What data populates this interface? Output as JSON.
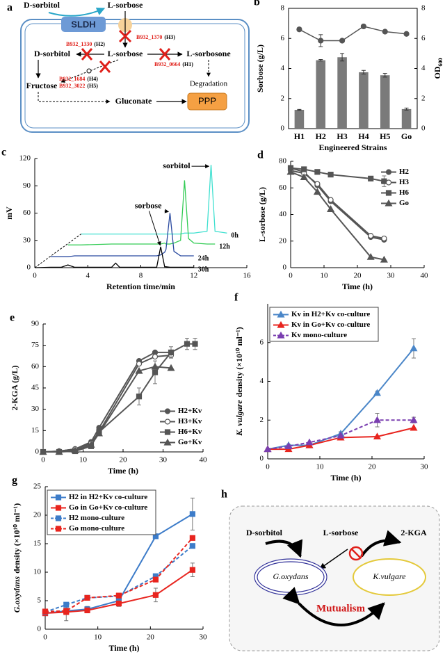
{
  "panel_a": {
    "letter": "a",
    "outside": [
      "D-sorbitol",
      "L-sorbose"
    ],
    "enzyme": "SLDH",
    "inside": [
      "D-sorbitol",
      "L-sorbose",
      "L-sorbosone",
      "Fructose",
      "Gluconate",
      "PPP",
      "Degradation"
    ],
    "genes": [
      {
        "gene": "B932_1370",
        "strain": "(H3)"
      },
      {
        "gene": "B932_1330",
        "strain": "(H2)"
      },
      {
        "gene": "B932_0664",
        "strain": "(H1)"
      },
      {
        "gene": "B932_1684",
        "strain": "(H4)"
      },
      {
        "gene": "B932_3022",
        "strain": "(H5)"
      }
    ]
  },
  "chart_data": [
    {
      "panel": "b",
      "type": "bar",
      "categories": [
        "H1",
        "H2",
        "H3",
        "H4",
        "H5",
        "Go"
      ],
      "xlabel": "Engineered Strains",
      "ylabel": "Sorbose (g/L)",
      "y2label": "OD",
      "y2label_sub": "600",
      "ylim": [
        0,
        8
      ],
      "yticks": [
        0,
        2,
        4,
        6,
        8
      ],
      "y2lim": [
        0,
        8
      ],
      "y2ticks": [
        0,
        2,
        4,
        6,
        8
      ],
      "series": [
        {
          "color": "#7a7a7a",
          "values": [
            1.25,
            4.55,
            4.75,
            3.75,
            3.55,
            1.3
          ],
          "errors": [
            0.03,
            0.05,
            0.25,
            0.12,
            0.12,
            0.07
          ]
        },
        {
          "axis": "y2",
          "color": "#555555",
          "marker": "circle",
          "filled": true,
          "values": [
            6.6,
            5.85,
            5.85,
            6.8,
            6.45,
            6.3
          ],
          "errors": [
            0.12,
            0.4,
            0.1,
            0.1,
            0.05,
            0.1
          ]
        }
      ]
    },
    {
      "panel": "c",
      "type": "line",
      "xlabel": "Retention time/min",
      "ylabel": "mV",
      "xlim": [
        0,
        16
      ],
      "xticks": [
        0,
        4,
        8,
        12,
        16
      ],
      "ylim": [
        0,
        120
      ],
      "yticks": [
        0,
        30,
        60,
        90,
        120
      ],
      "annotations": [
        "sorbitol",
        "sorbose"
      ],
      "annotation_color": "#6a2fa0",
      "x": [
        0,
        1.2,
        2,
        2.5,
        3,
        3.5,
        5.8,
        6.1,
        6.4,
        9.2,
        9.5,
        9.8,
        9.9,
        10.2,
        10.5,
        11.0,
        11.3,
        11.6,
        12,
        13.0,
        13.3,
        13.6,
        14.5
      ],
      "series": [
        {
          "name": "0h",
          "color": "#3fe0d0",
          "values": [
            null,
            null,
            null,
            null,
            null,
            37,
            37,
            37,
            37,
            37,
            37,
            37,
            37,
            37,
            37,
            37,
            38,
            38,
            38,
            40,
            113,
            40,
            38
          ]
        },
        {
          "name": "12h",
          "color": "#33cc55",
          "values": [
            null,
            null,
            null,
            25,
            25,
            25,
            26,
            26,
            26,
            26,
            26,
            27,
            26,
            26,
            27,
            30,
            96,
            32,
            27,
            26,
            26,
            26,
            null
          ]
        },
        {
          "name": "24h",
          "color": "#2a4aa0",
          "values": [
            null,
            12,
            12,
            12,
            13,
            13,
            13,
            13,
            13,
            13,
            14,
            17,
            20,
            60,
            18,
            13,
            13,
            13,
            13,
            null,
            null,
            null,
            null
          ]
        },
        {
          "name": "30h",
          "color": "#000000",
          "values": [
            0,
            0.5,
            0.5,
            3,
            0.5,
            0.5,
            0.5,
            5,
            0.5,
            0.5,
            23,
            1,
            1,
            0.5,
            0.5,
            0.5,
            0.5,
            0.5,
            0.5,
            null,
            null,
            null,
            null
          ]
        }
      ]
    },
    {
      "panel": "d",
      "type": "line",
      "xlabel": "Time (h)",
      "ylabel": "L-sorbose (g/L)",
      "xlim": [
        0,
        40
      ],
      "xticks": [
        0,
        10,
        20,
        30,
        40
      ],
      "ylim": [
        0,
        80
      ],
      "yticks": [
        0,
        20,
        40,
        60,
        80
      ],
      "legend": "upper right",
      "x": [
        0,
        4,
        8,
        12,
        24,
        28
      ],
      "series": [
        {
          "name": "H2",
          "color": "#555555",
          "marker": "circle",
          "filled": true,
          "values": [
            75,
            72,
            62,
            50,
            23,
            21
          ]
        },
        {
          "name": "H3",
          "color": "#555555",
          "marker": "circle",
          "filled": false,
          "values": [
            73,
            71,
            63,
            51,
            24,
            22
          ]
        },
        {
          "name": "H6",
          "color": "#555555",
          "marker": "square",
          "filled": true,
          "values": [
            75,
            74,
            72,
            70,
            67,
            65
          ],
          "errors": [
            1,
            1,
            1,
            1,
            1,
            4
          ]
        },
        {
          "name": "Go",
          "color": "#555555",
          "marker": "triangle",
          "filled": true,
          "values": [
            72,
            68,
            57,
            44,
            8,
            6
          ]
        }
      ]
    },
    {
      "panel": "e",
      "type": "line",
      "xlabel": "Time (h)",
      "ylabel": "2-KGA (g/L)",
      "xlim": [
        0,
        40
      ],
      "xticks": [
        0,
        10,
        20,
        30,
        40
      ],
      "ylim": [
        0,
        90
      ],
      "yticks": [
        0,
        15,
        30,
        45,
        60,
        75,
        90
      ],
      "legend": "lower right",
      "x": [
        0,
        4,
        8,
        12,
        14,
        24,
        28,
        32,
        36,
        38
      ],
      "series": [
        {
          "name": "H2+Kv",
          "color": "#555555",
          "marker": "circle",
          "filled": true,
          "values": [
            0,
            0.5,
            2,
            7,
            17,
            64,
            70,
            70,
            null,
            null
          ]
        },
        {
          "name": "H3+Kv",
          "color": "#555555",
          "marker": "circle",
          "filled": false,
          "values": [
            0,
            0.5,
            2,
            6,
            14,
            62,
            67,
            68,
            null,
            null
          ]
        },
        {
          "name": "H6+Kv",
          "color": "#555555",
          "marker": "square",
          "filled": true,
          "values": [
            0,
            0,
            0.5,
            4,
            14,
            39,
            56,
            70,
            76,
            76
          ],
          "errors": [
            0,
            0,
            0,
            0,
            0,
            6,
            8,
            4,
            4,
            4
          ]
        },
        {
          "name": "Go+Kv",
          "color": "#555555",
          "marker": "triangle",
          "filled": true,
          "values": [
            0,
            0,
            1,
            5,
            13,
            57,
            60,
            59,
            null,
            null
          ]
        }
      ]
    },
    {
      "panel": "f",
      "type": "line",
      "xlabel": "Time (h)",
      "ylabel_species": "K. vulgare",
      "ylabel": "density (×10¹⁰ ml⁻¹)",
      "xlim": [
        0,
        30
      ],
      "xticks": [
        0,
        10,
        20,
        30
      ],
      "ylim": [
        0,
        8
      ],
      "yticks": [
        0,
        2,
        4,
        6
      ],
      "legend": "upper left",
      "x": [
        0,
        4,
        8,
        14,
        21,
        28
      ],
      "series": [
        {
          "name": "Kv in H2+Kv co-culture",
          "color": "#4a86c8",
          "marker": "triangle",
          "filled": true,
          "values": [
            0.5,
            0.7,
            0.7,
            1.3,
            3.4,
            5.7
          ],
          "errors": [
            0.05,
            0.05,
            0.05,
            0.1,
            0.1,
            0.5
          ]
        },
        {
          "name": "Kv in Go+Kv co-culture",
          "color": "#e8251f",
          "marker": "triangle",
          "filled": true,
          "values": [
            0.5,
            0.5,
            0.7,
            1.1,
            1.15,
            1.6
          ]
        },
        {
          "name": "Kv mono-culture",
          "color": "#7a3fb0",
          "marker": "triangle",
          "filled": true,
          "dash": true,
          "values": [
            0.5,
            0.65,
            0.85,
            1.2,
            2.0,
            2.0
          ],
          "errors": [
            0,
            0,
            0,
            0,
            0.35,
            0.15
          ]
        }
      ]
    },
    {
      "panel": "g",
      "type": "line",
      "xlabel": "Time (h)",
      "ylabel_species": "G.oxydans",
      "ylabel": "density (×10¹⁰ ml⁻¹)",
      "xlim": [
        0,
        30
      ],
      "xticks": [
        0,
        10,
        20,
        30
      ],
      "ylim": [
        0,
        25
      ],
      "yticks": [
        0,
        5,
        10,
        15,
        20,
        25
      ],
      "legend": "upper left",
      "x": [
        0,
        4,
        8,
        14,
        21,
        28
      ],
      "series": [
        {
          "name": "H2 in H2+Kv co-culture",
          "color": "#3d7cc9",
          "marker": "square",
          "filled": true,
          "values": [
            2.8,
            3.2,
            3.5,
            5,
            16.3,
            20.2
          ],
          "errors": [
            0.3,
            0.5,
            0.5,
            0.5,
            0.3,
            2.8
          ]
        },
        {
          "name": "Go in Go+Kv co-culture",
          "color": "#e8251f",
          "marker": "square",
          "filled": true,
          "values": [
            2.8,
            3,
            3.3,
            4.5,
            6,
            10.4
          ],
          "errors": [
            0.3,
            1.5,
            0.3,
            0.5,
            1.2,
            1.2
          ]
        },
        {
          "name": "H2 mono-culture",
          "color": "#3d7cc9",
          "marker": "square",
          "filled": true,
          "dash": true,
          "values": [
            3,
            4.3,
            5.5,
            5.8,
            9.3,
            14.6
          ]
        },
        {
          "name": "Go mono-culture",
          "color": "#e8251f",
          "marker": "square",
          "filled": true,
          "dash": true,
          "values": [
            3.1,
            3.2,
            5.5,
            5.9,
            8.7,
            16
          ]
        }
      ]
    }
  ],
  "panel_h": {
    "letter": "h",
    "nodes": [
      "D-sorbitol",
      "L-sorbose",
      "2-KGA",
      "G.oxydans",
      "K.vulgare"
    ],
    "relation": "Mutualism"
  }
}
